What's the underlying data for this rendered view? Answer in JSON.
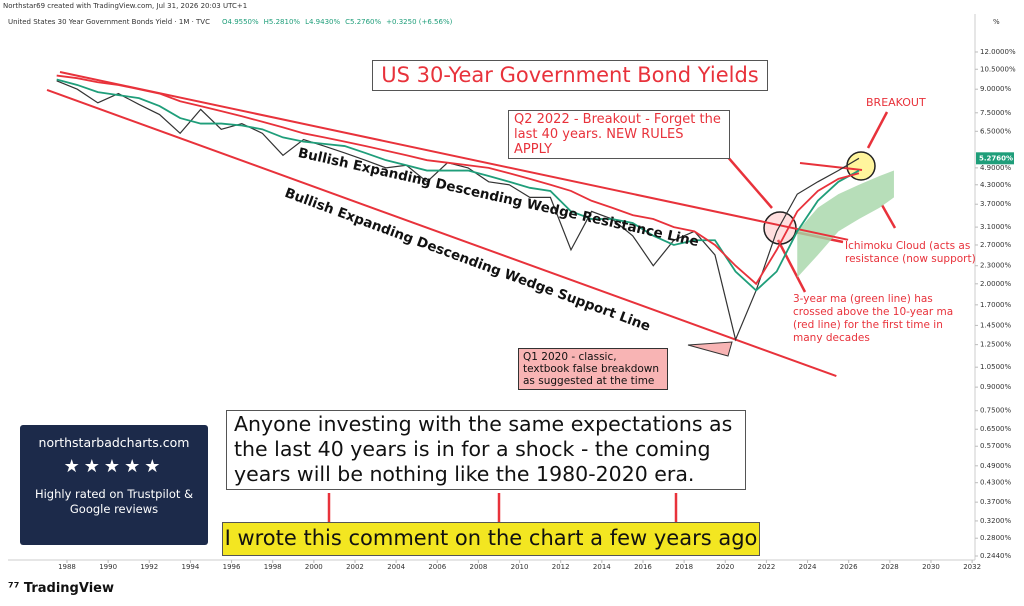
{
  "header": {
    "created": "Northstar69 created with TradingView.com, Jul 31, 2026 20:03 UTC+1",
    "symbol": "United States 30 Year Government Bonds Yield · 1M · TVC",
    "ohlc": [
      "O4.9550%",
      "H5.2810%",
      "L4.9430%",
      "C5.2760%",
      "+0.3250 (+6.56%)"
    ]
  },
  "chart_data": {
    "type": "line",
    "title": "US 30-Year Government Bond Yields",
    "log_scale": true,
    "grid": false,
    "y_unit": "%",
    "x": [
      1987.5,
      1988.5,
      1989.5,
      1990.5,
      1991.5,
      1992.5,
      1993.5,
      1994.5,
      1995.5,
      1996.5,
      1997.5,
      1998.5,
      1999.5,
      2000.5,
      2001.5,
      2002.5,
      2003.5,
      2004.5,
      2005.5,
      2006.5,
      2007.5,
      2008.5,
      2009.5,
      2010.5,
      2011.5,
      2012.5,
      2013.5,
      2014.5,
      2015.5,
      2016.5,
      2017.5,
      2018.5,
      2019.5,
      2020.5,
      2021.5,
      2022.5,
      2023.5,
      2024.5,
      2025.5,
      2026.5
    ],
    "series": [
      {
        "name": "Yield",
        "color": "#333333",
        "values": [
          9.6,
          9.0,
          8.1,
          8.7,
          8.0,
          7.4,
          6.4,
          7.7,
          6.6,
          6.9,
          6.4,
          5.4,
          6.1,
          5.8,
          5.5,
          5.2,
          4.9,
          5.0,
          4.4,
          5.1,
          4.9,
          4.4,
          4.3,
          3.9,
          3.9,
          2.6,
          3.5,
          3.3,
          2.9,
          2.3,
          2.8,
          3.0,
          2.5,
          1.3,
          1.9,
          3.0,
          4.0,
          4.4,
          4.8,
          5.276
        ]
      },
      {
        "name": "3-year ma",
        "color": "#1f9e7a",
        "values": [
          9.7,
          9.3,
          8.8,
          8.6,
          8.4,
          7.9,
          7.2,
          6.9,
          6.9,
          6.8,
          6.6,
          6.2,
          6.0,
          5.9,
          5.8,
          5.5,
          5.2,
          5.0,
          4.8,
          4.8,
          4.8,
          4.6,
          4.4,
          4.2,
          4.1,
          3.5,
          3.3,
          3.3,
          3.2,
          2.9,
          2.7,
          2.8,
          2.8,
          2.2,
          1.9,
          2.2,
          3.0,
          3.8,
          4.4,
          4.8
        ]
      },
      {
        "name": "10-year ma",
        "color": "#e8323b",
        "values": [
          10.0,
          9.8,
          9.5,
          9.3,
          9.0,
          8.7,
          8.2,
          7.9,
          7.6,
          7.3,
          7.0,
          6.7,
          6.4,
          6.2,
          6.0,
          5.8,
          5.6,
          5.4,
          5.2,
          5.1,
          5.0,
          4.9,
          4.7,
          4.5,
          4.3,
          4.1,
          3.8,
          3.6,
          3.4,
          3.3,
          3.1,
          3.0,
          2.7,
          2.3,
          2.0,
          2.6,
          3.5,
          4.1,
          4.5,
          4.7
        ]
      }
    ],
    "last_value_label": "5.2760%",
    "cloud": {
      "color": "#a5d6a7",
      "x": [
        2023.5,
        2024.5,
        2025.5,
        2026.5,
        2027.5,
        2028.2
      ],
      "upper": [
        3.0,
        3.6,
        4.0,
        4.3,
        4.6,
        4.8
      ],
      "lower": [
        2.1,
        2.5,
        3.0,
        3.3,
        3.6,
        3.9
      ]
    },
    "trend_lines": [
      {
        "name": "Bullish Expanding Descending Wedge Resistance Line",
        "color": "#e8323b",
        "x": [
          1987.66,
          2025.97
        ],
        "values": [
          10.28,
          2.81
        ]
      },
      {
        "name": "Bullish Expanding Descending Wedge Support Line",
        "color": "#e8323b",
        "x": [
          1987.03,
          2025.4
        ],
        "values": [
          8.95,
          0.98
        ]
      }
    ],
    "xlim": [
      1985.23,
      2032.14
    ],
    "xticks": [
      1988,
      1990,
      1992,
      1994,
      1996,
      1998,
      2000,
      2002,
      2004,
      2006,
      2008,
      2010,
      2012,
      2014,
      2016,
      2018,
      2020,
      2022,
      2024,
      2026,
      2028,
      2030,
      2032
    ],
    "ylim": [
      0.2366,
      15.97
    ],
    "yticks": [
      {
        "value": 12,
        "label": "12.0000%"
      },
      {
        "value": 10.5,
        "label": "10.5000%"
      },
      {
        "value": 9,
        "label": "9.0000%"
      },
      {
        "value": 7.5,
        "label": "7.5000%"
      },
      {
        "value": 6.5,
        "label": "6.5000%"
      },
      {
        "value": 4.9,
        "label": "4.9000%"
      },
      {
        "value": 4.3,
        "label": "4.3000%"
      },
      {
        "value": 3.7,
        "label": "3.7000%"
      },
      {
        "value": 3.1,
        "label": "3.1000%"
      },
      {
        "value": 2.7,
        "label": "2.7000%"
      },
      {
        "value": 2.3,
        "label": "2.3000%"
      },
      {
        "value": 2,
        "label": "2.0000%"
      },
      {
        "value": 1.7,
        "label": "1.7000%"
      },
      {
        "value": 1.45,
        "label": "1.4500%"
      },
      {
        "value": 1.25,
        "label": "1.2500%"
      },
      {
        "value": 1.05,
        "label": "1.0500%"
      },
      {
        "value": 0.9,
        "label": "0.9000%"
      },
      {
        "value": 0.75,
        "label": "0.7500%"
      },
      {
        "value": 0.65,
        "label": "0.6500%"
      },
      {
        "value": 0.57,
        "label": "0.5700%"
      },
      {
        "value": 0.49,
        "label": "0.4900%"
      },
      {
        "value": 0.43,
        "label": "0.4300%"
      },
      {
        "value": 0.37,
        "label": "0.3700%"
      },
      {
        "value": 0.32,
        "label": "0.3200%"
      },
      {
        "value": 0.28,
        "label": "0.2800%"
      },
      {
        "value": 0.244,
        "label": "0.2440%"
      }
    ],
    "annotations": {
      "breakout_box": "Q2 2022 - Breakout - Forget the last 40 years. NEW RULES APPLY",
      "breakout": "BREAKOUT",
      "ichimoku": "Ichimoku Cloud (acts as resistance (now support)",
      "ma_cross": "3-year ma (green line) has crossed above the 10-year ma (red line) for the first time in many decades",
      "false_breakdown": "Q1 2020 - classic, textbook false breakdown as suggested at the time",
      "comment": "Anyone investing with the same expectations as the last 40 years is in for a shock - the coming years will be nothing like the 1980-2020 era.",
      "note": "I wrote this comment on the chart a few years ago"
    }
  },
  "badge": {
    "site": "northstarbadcharts.com",
    "text": "Highly rated on Trustpilot & Google reviews"
  },
  "footer": {
    "brand": "TradingView"
  }
}
